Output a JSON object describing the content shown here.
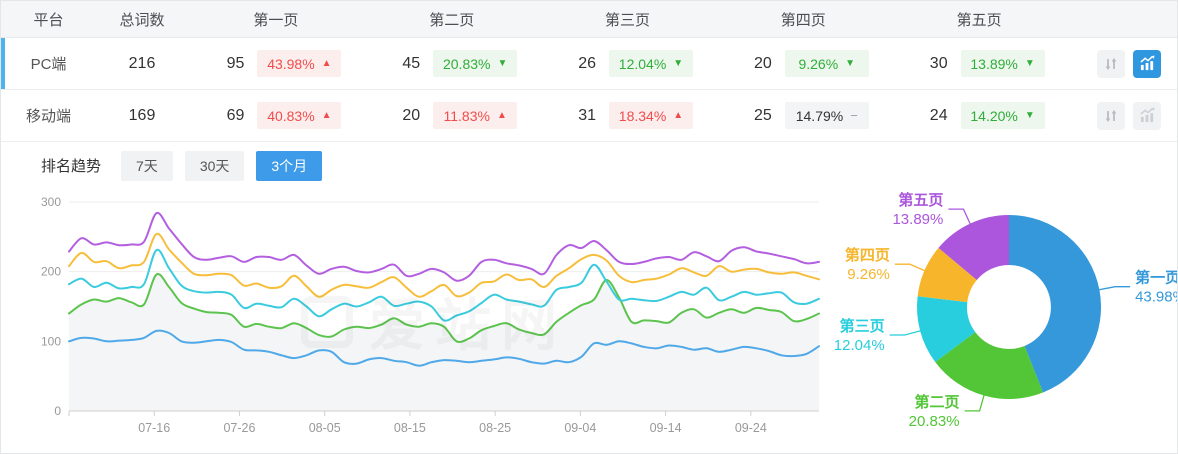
{
  "table": {
    "columns": [
      "平台",
      "总词数",
      "第一页",
      "第二页",
      "第三页",
      "第四页",
      "第五页"
    ],
    "rows": [
      {
        "platform": "PC端",
        "total": "216",
        "active": true,
        "chart_active": true,
        "pages": [
          {
            "count": "95",
            "pct": "43.98%",
            "dir": "up"
          },
          {
            "count": "45",
            "pct": "20.83%",
            "dir": "down"
          },
          {
            "count": "26",
            "pct": "12.04%",
            "dir": "down"
          },
          {
            "count": "20",
            "pct": "9.26%",
            "dir": "down"
          },
          {
            "count": "30",
            "pct": "13.89%",
            "dir": "down"
          }
        ]
      },
      {
        "platform": "移动端",
        "total": "169",
        "active": false,
        "chart_active": false,
        "pages": [
          {
            "count": "69",
            "pct": "40.83%",
            "dir": "up"
          },
          {
            "count": "20",
            "pct": "11.83%",
            "dir": "up"
          },
          {
            "count": "31",
            "pct": "18.34%",
            "dir": "up"
          },
          {
            "count": "25",
            "pct": "14.79%",
            "dir": "flat"
          },
          {
            "count": "24",
            "pct": "14.20%",
            "dir": "down"
          }
        ]
      }
    ]
  },
  "trend": {
    "title": "排名趋势",
    "tabs": [
      {
        "label": "7天",
        "active": false
      },
      {
        "label": "30天",
        "active": false
      },
      {
        "label": "3个月",
        "active": true
      }
    ]
  },
  "watermark": "爱站网",
  "colors": {
    "accent_blue": "#2f97e0",
    "row_accent": "#4db4f2",
    "badge_up_text": "#f14c4c",
    "badge_down_text": "#2fae39"
  },
  "chart_data": [
    {
      "type": "line",
      "title": "排名趋势 3个月",
      "x_ticks": [
        "07-16",
        "07-26",
        "08-05",
        "08-15",
        "08-25",
        "09-04",
        "09-14",
        "09-24"
      ],
      "x_tick_step_days": 10,
      "x_axis_span_days": 88,
      "y_ticks": [
        0,
        100,
        200,
        300
      ],
      "ylim": [
        0,
        300
      ],
      "grid": true,
      "legend": "none",
      "series": [
        {
          "name": "第一页",
          "color": "#4FA8E8",
          "area": false,
          "values": [
            100,
            105,
            104,
            100,
            101,
            102,
            105,
            115,
            112,
            100,
            98,
            100,
            102,
            99,
            88,
            87,
            85,
            80,
            76,
            80,
            87,
            85,
            70,
            68,
            74,
            76,
            72,
            70,
            65,
            70,
            73,
            72,
            70,
            72,
            74,
            77,
            75,
            70,
            68,
            72,
            70,
            78,
            97,
            95,
            100,
            97,
            92,
            90,
            94,
            92,
            88,
            90,
            85,
            88,
            92,
            90,
            86,
            80,
            79,
            82,
            93
          ]
        },
        {
          "name": "第二页",
          "color": "#5CC44E",
          "area": true,
          "values": [
            140,
            153,
            160,
            157,
            162,
            156,
            153,
            196,
            178,
            155,
            147,
            142,
            141,
            138,
            121,
            125,
            121,
            119,
            126,
            119,
            109,
            107,
            117,
            121,
            119,
            124,
            133,
            124,
            121,
            126,
            121,
            100,
            104,
            116,
            122,
            126,
            117,
            112,
            110,
            128,
            141,
            152,
            160,
            188,
            163,
            128,
            130,
            129,
            127,
            141,
            146,
            134,
            141,
            146,
            141,
            148,
            145,
            142,
            129,
            132,
            140
          ]
        },
        {
          "name": "第三页",
          "color": "#3ACBDE",
          "area": false,
          "values": [
            182,
            190,
            178,
            184,
            176,
            178,
            182,
            231,
            205,
            180,
            172,
            170,
            171,
            167,
            148,
            154,
            151,
            149,
            161,
            150,
            136,
            146,
            154,
            150,
            156,
            164,
            151,
            154,
            157,
            150,
            130,
            137,
            143,
            155,
            167,
            160,
            157,
            153,
            151,
            174,
            178,
            184,
            210,
            186,
            160,
            161,
            159,
            158,
            164,
            171,
            167,
            177,
            159,
            164,
            171,
            167,
            169,
            170,
            156,
            154,
            161
          ]
        },
        {
          "name": "第四页",
          "color": "#F7BE3C",
          "area": false,
          "values": [
            208,
            227,
            214,
            215,
            205,
            209,
            214,
            254,
            232,
            213,
            197,
            195,
            197,
            195,
            180,
            183,
            177,
            179,
            194,
            179,
            164,
            174,
            181,
            179,
            177,
            185,
            192,
            177,
            164,
            172,
            181,
            165,
            170,
            184,
            186,
            196,
            188,
            189,
            178,
            194,
            205,
            218,
            224,
            216,
            194,
            185,
            188,
            190,
            196,
            205,
            199,
            194,
            208,
            200,
            203,
            204,
            199,
            197,
            199,
            194,
            189
          ]
        },
        {
          "name": "第五页",
          "color": "#B35FE0",
          "area": false,
          "values": [
            229,
            248,
            239,
            242,
            238,
            239,
            243,
            284,
            262,
            240,
            221,
            217,
            220,
            222,
            214,
            221,
            221,
            217,
            224,
            209,
            197,
            204,
            207,
            201,
            199,
            204,
            210,
            194,
            197,
            204,
            199,
            187,
            194,
            214,
            217,
            212,
            209,
            204,
            197,
            224,
            238,
            234,
            244,
            231,
            214,
            211,
            214,
            219,
            221,
            217,
            228,
            222,
            215,
            230,
            235,
            229,
            226,
            222,
            218,
            212,
            214
          ]
        }
      ]
    },
    {
      "type": "pie",
      "donut": true,
      "segments": [
        {
          "label": "第一页",
          "value": 43.98,
          "value_label": "43.98%",
          "color": "#3498DB"
        },
        {
          "label": "第二页",
          "value": 20.83,
          "value_label": "20.83%",
          "color": "#52C637"
        },
        {
          "label": "第三页",
          "value": 12.04,
          "value_label": "12.04%",
          "color": "#29CEDE"
        },
        {
          "label": "第四页",
          "value": 9.26,
          "value_label": "9.26%",
          "color": "#F6B52B"
        },
        {
          "label": "第五页",
          "value": 13.89,
          "value_label": "13.89%",
          "color": "#AB56DC"
        }
      ]
    }
  ]
}
